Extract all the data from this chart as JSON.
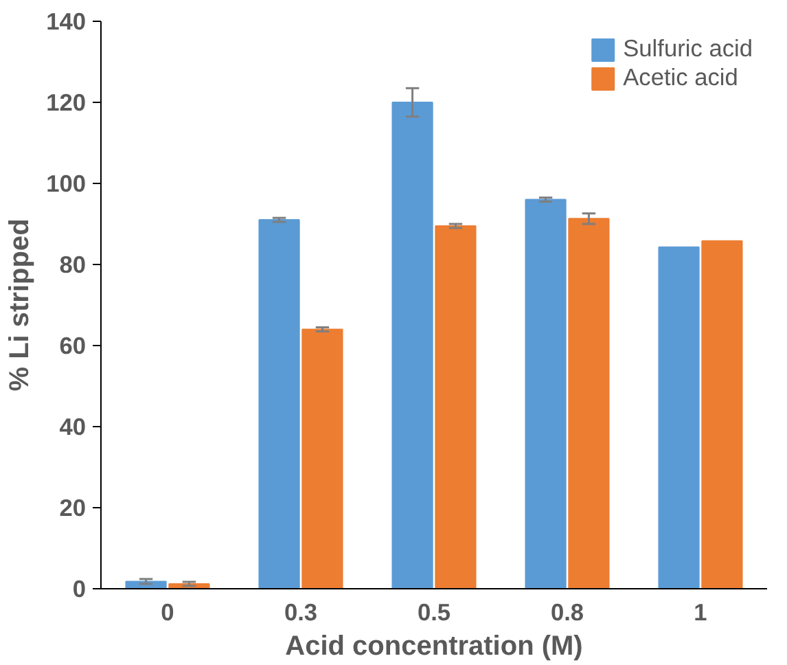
{
  "chart_data": {
    "type": "bar",
    "xlabel": "Acid concentration (M)",
    "ylabel": "% Li stripped",
    "categories": [
      "0",
      "0.3",
      "0.5",
      "0.8",
      "1"
    ],
    "ylim": [
      0,
      140
    ],
    "yticks": [
      0,
      20,
      40,
      60,
      80,
      100,
      120,
      140
    ],
    "grid": false,
    "legend": "top right",
    "series": [
      {
        "name": "Sulfuric acid",
        "color": "#5b9bd5",
        "values": [
          1.8,
          91,
          120,
          96,
          84.3
        ],
        "errors": [
          0.6,
          0.5,
          3.5,
          0.5,
          null
        ]
      },
      {
        "name": "Acetic acid",
        "color": "#ed7d31",
        "values": [
          1.2,
          64,
          89.5,
          91.3,
          85.8
        ],
        "errors": [
          0.5,
          0.5,
          0.5,
          1.3,
          null
        ]
      }
    ]
  }
}
